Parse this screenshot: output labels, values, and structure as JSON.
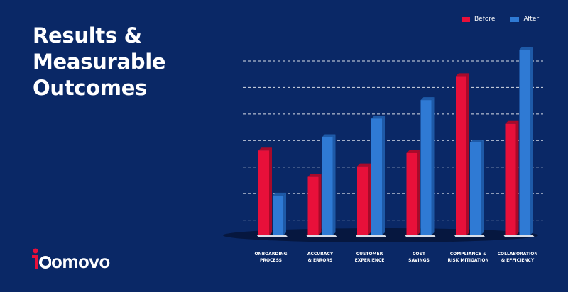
{
  "title": "Results & Measurable Outcomes",
  "logo_text": "omovo",
  "colors": {
    "background": "#0a2866",
    "before": "#e8103a",
    "after": "#2f7ad4"
  },
  "chart_data": {
    "type": "bar",
    "categories": [
      "ONBOARDING\nPROCESS",
      "ACCURACY\n& ERRORS",
      "CUSTOMER\nEXPERIENCE",
      "COST\nSAVINGS",
      "COMPLIANCE &\nRISK MITIGATION",
      "COLLABORATION\n& EFFICIENCY"
    ],
    "series": [
      {
        "name": "Before",
        "values": [
          3.2,
          2.2,
          2.6,
          3.1,
          6.0,
          4.2
        ]
      },
      {
        "name": "After",
        "values": [
          1.5,
          3.7,
          4.4,
          5.1,
          3.5,
          7.0
        ]
      }
    ],
    "ylim": [
      0,
      7
    ],
    "grid": true,
    "legend_position": "top-right"
  }
}
